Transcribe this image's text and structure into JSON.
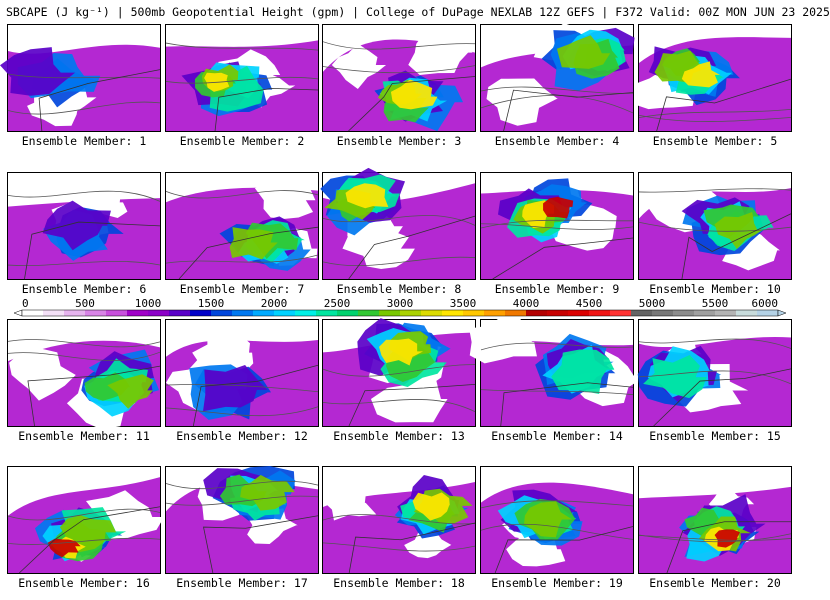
{
  "title": "SBCAPE (J kg⁻¹) | 500mb Geopotential Height (gpm) | College of DuPage NEXLAB 12Z GEFS | F372 Valid: 00Z MON JUN 23 2025",
  "colorbar": {
    "labels": [
      "0",
      "500",
      "1000",
      "1500",
      "2000",
      "2500",
      "3000",
      "3500",
      "4000",
      "4500",
      "5000",
      "5500",
      "6000"
    ],
    "colors": [
      "#ffffff",
      "#f3e0f6",
      "#e6b4ee",
      "#d884e6",
      "#c850dc",
      "#a000c8",
      "#8c00c8",
      "#5a00c8",
      "#0000c8",
      "#0046dc",
      "#0078f0",
      "#00aaff",
      "#00d2ff",
      "#00f0e6",
      "#00e6a0",
      "#00d26e",
      "#32c832",
      "#78c800",
      "#aad200",
      "#dcdc00",
      "#ffe600",
      "#ffc800",
      "#ffa000",
      "#f07800",
      "#b40000",
      "#c80000",
      "#dc0000",
      "#f01414",
      "#ff3232",
      "#646464",
      "#787878",
      "#8c8c8c",
      "#a0a0a0",
      "#b4b4b4",
      "#c8dcdc",
      "#b4d2e6"
    ]
  },
  "members": [
    {
      "label": "Ensemble Member: 1"
    },
    {
      "label": "Ensemble Member: 2"
    },
    {
      "label": "Ensemble Member: 3"
    },
    {
      "label": "Ensemble Member: 4"
    },
    {
      "label": "Ensemble Member: 5"
    },
    {
      "label": "Ensemble Member: 6"
    },
    {
      "label": "Ensemble Member: 7"
    },
    {
      "label": "Ensemble Member: 8"
    },
    {
      "label": "Ensemble Member: 9"
    },
    {
      "label": "Ensemble Member: 10"
    },
    {
      "label": "Ensemble Member: 11"
    },
    {
      "label": "Ensemble Member: 12"
    },
    {
      "label": "Ensemble Member: 13"
    },
    {
      "label": "Ensemble Member: 14"
    },
    {
      "label": "Ensemble Member: 15"
    },
    {
      "label": "Ensemble Member: 16"
    },
    {
      "label": "Ensemble Member: 17"
    },
    {
      "label": "Ensemble Member: 18"
    },
    {
      "label": "Ensemble Member: 19"
    },
    {
      "label": "Ensemble Member: 20"
    }
  ]
}
